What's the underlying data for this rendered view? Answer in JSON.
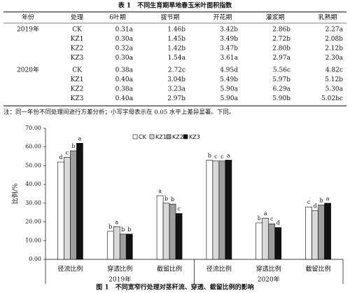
{
  "table": {
    "title": "表 1　不同生育期旱地春玉米叶面积指数",
    "header": [
      "年份",
      "处理",
      "6叶期",
      "拔节期",
      "开花期",
      "灌浆期",
      "乳熟期"
    ],
    "groups": [
      {
        "year": "2019年",
        "rows": [
          [
            "CK",
            "0.31a",
            "1.46b",
            "3.42b",
            "2.86b",
            "2.27a"
          ],
          [
            "KZ1",
            "0.30a",
            "1.45b",
            "3.49b",
            "2.72b",
            "2.08b"
          ],
          [
            "KZ2",
            "0.32a",
            "1.42b",
            "3.47b",
            "2.80b",
            "2.12b"
          ],
          [
            "KZ3",
            "0.30a",
            "1.54a",
            "3.61a",
            "2.97a",
            "2.30a"
          ]
        ]
      },
      {
        "year": "2020年",
        "rows": [
          [
            "CK",
            "0.38a",
            "2.72c",
            "4.95d",
            "5.56c",
            "4.82c"
          ],
          [
            "KZ1",
            "0.40a",
            "3.04b",
            "5.49b",
            "5.97b",
            "5.12b"
          ],
          [
            "KZ2",
            "0.38a",
            "3.23a",
            "5.90a",
            "6.29a",
            "5.30a"
          ],
          [
            "KZ3",
            "0.40a",
            "2.97b",
            "5.90a",
            "5.90b",
            "5.02bc"
          ]
        ]
      }
    ],
    "note": "注：同一年份不同处理间进行方差分析；小写字母表示在 0.05 水平上差异显著。下同。"
  },
  "chart_data": {
    "type": "bar",
    "caption": "图 1　不同宽窄行处理对茎秆流、穿透、截留比例的影响",
    "y_label": "比例/%",
    "categories": [
      "径流比例",
      "穿透比例",
      "截留比例",
      "径流比例",
      "穿透比例",
      "截留比例"
    ],
    "group_labels": [
      "2019年",
      "2020年"
    ],
    "ylim": [
      0,
      70
    ],
    "yticks": [
      {
        "value": 0,
        "label": "0.00"
      },
      {
        "value": 10,
        "label": "10.00"
      },
      {
        "value": 20,
        "label": "20.00"
      },
      {
        "value": 30,
        "label": "30.00"
      },
      {
        "value": 40,
        "label": "40.00"
      },
      {
        "value": 50,
        "label": "50.00"
      },
      {
        "value": 60,
        "label": "60.00"
      },
      {
        "value": 70,
        "label": "70.00"
      }
    ],
    "series": [
      {
        "name": "CK",
        "color": "#ffffff",
        "values": [
          52,
          15,
          34,
          53,
          19.5,
          28
        ],
        "letters": [
          "d",
          "b",
          "a",
          "b",
          "b",
          "c"
        ]
      },
      {
        "name": "KZ1",
        "color": "#d9d9d9",
        "values": [
          54.5,
          17.5,
          30,
          52.5,
          22,
          26
        ],
        "letters": [
          "c",
          "a",
          "b",
          "c",
          "a",
          "d"
        ]
      },
      {
        "name": "KZ2",
        "color": "#9e9e9e",
        "values": [
          58,
          13.5,
          29.5,
          52.5,
          19,
          29
        ],
        "letters": [
          "b",
          "b",
          "b",
          "c",
          "c",
          "b"
        ]
      },
      {
        "name": "KZ3",
        "color": "#111111",
        "values": [
          62,
          13.5,
          24.5,
          53,
          17,
          30
        ],
        "letters": [
          "a",
          "b",
          "c",
          "a",
          "d",
          "a"
        ]
      }
    ]
  }
}
